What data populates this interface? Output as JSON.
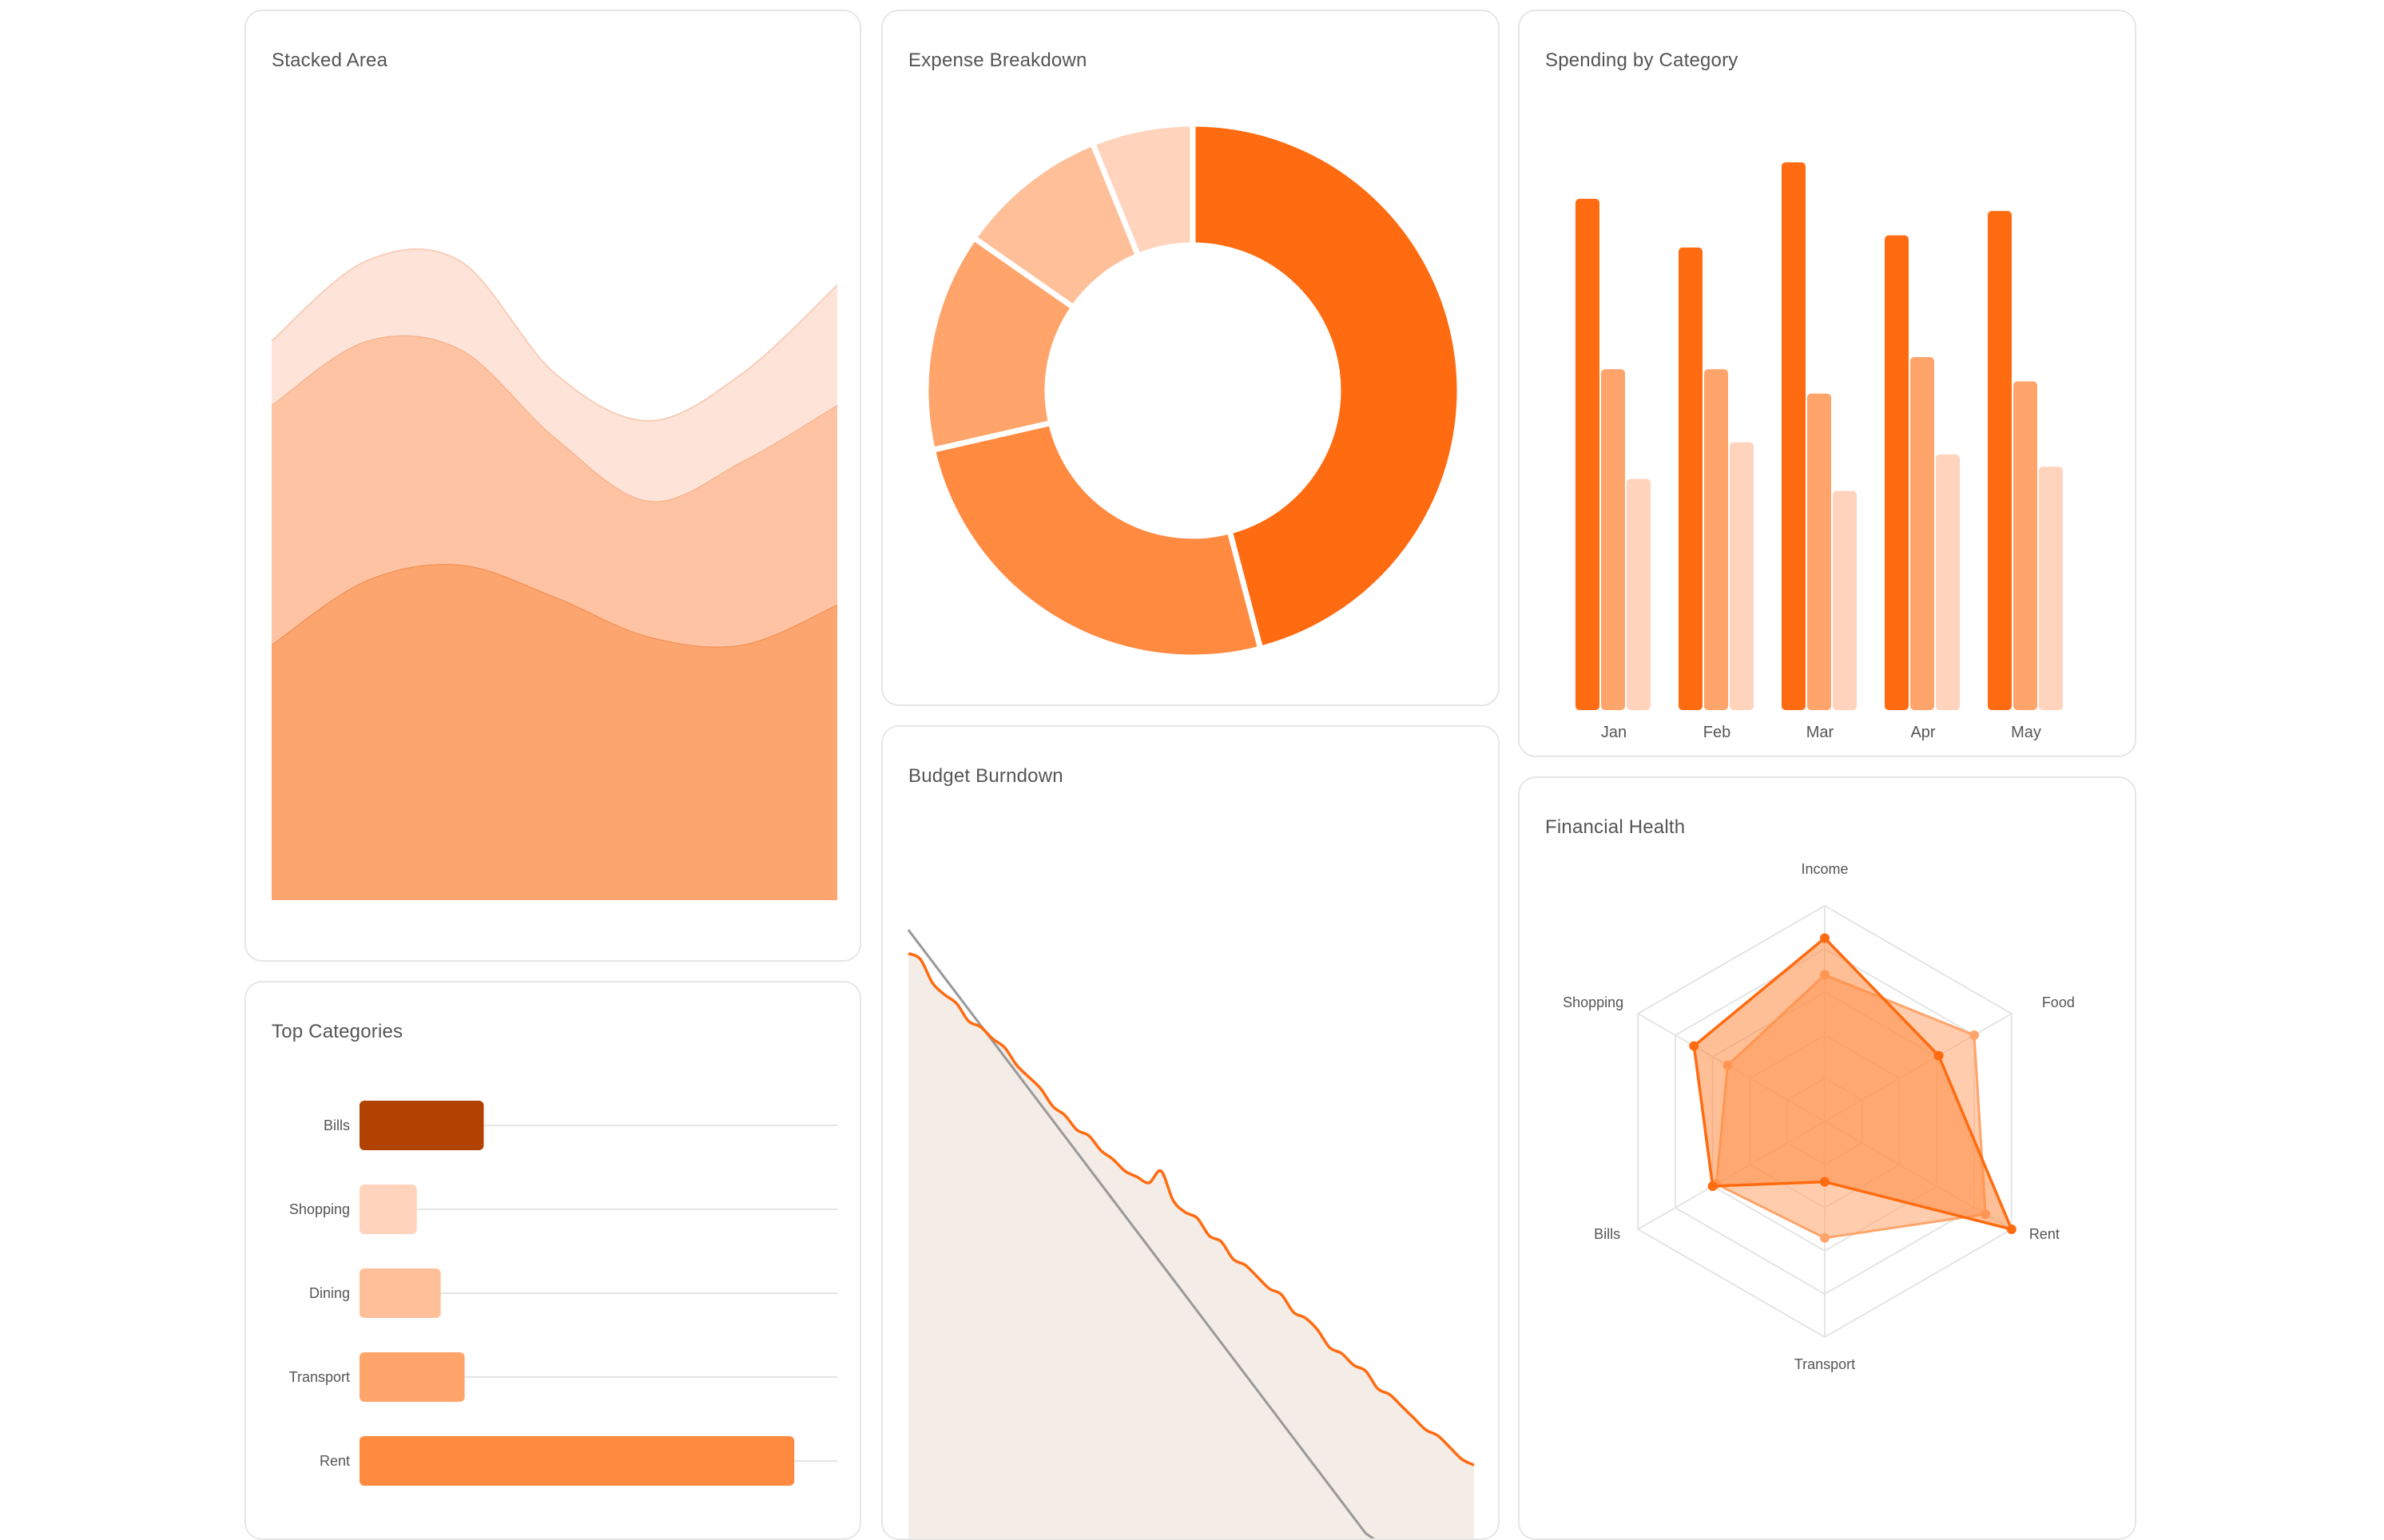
{
  "colors": {
    "c1": "#FF6B10",
    "c2": "#FF8A40",
    "c3": "#FFA46A",
    "c4": "#FFBF98",
    "c5": "#FFD3BC",
    "dark": "#B24201",
    "area_bottom": "#FCA56E",
    "area_mid": "#FDC3A2",
    "area_top": "#FEE4D8",
    "burn_fill": "#F4ECE6",
    "grid": "#E5E5E5",
    "ideal": "#999999"
  },
  "cards": {
    "stacked": {
      "title": "Stacked Area"
    },
    "expense": {
      "title": "Expense Breakdown"
    },
    "spending": {
      "title": "Spending by Category"
    },
    "top": {
      "title": "Top Categories"
    },
    "burndown": {
      "title": "Budget Burndown"
    },
    "health": {
      "title": "Financial Health"
    }
  },
  "chart_data": [
    {
      "id": "stacked",
      "type": "area",
      "title": "Stacked Area",
      "stacked": true,
      "x": [
        0,
        1,
        2,
        3,
        4,
        5,
        6
      ],
      "ylim": [
        0,
        100
      ],
      "series": [
        {
          "values": [
            32,
            40,
            42,
            38,
            33,
            32,
            37
          ]
        },
        {
          "values": [
            30,
            30,
            27,
            20,
            17,
            23,
            25
          ]
        },
        {
          "values": [
            8,
            10,
            11,
            8,
            10,
            11,
            15
          ]
        }
      ]
    },
    {
      "id": "expense",
      "type": "pie",
      "title": "Expense Breakdown",
      "donut": true,
      "values": [
        45,
        25,
        13,
        9,
        6
      ]
    },
    {
      "id": "spending",
      "type": "bar",
      "title": "Spending by Category",
      "categories": [
        "Jan",
        "Feb",
        "Mar",
        "Apr",
        "May"
      ],
      "ylim": [
        0,
        100
      ],
      "series": [
        {
          "values": [
            84,
            76,
            90,
            78,
            82
          ]
        },
        {
          "values": [
            56,
            56,
            52,
            58,
            54
          ]
        },
        {
          "values": [
            38,
            44,
            36,
            42,
            40
          ]
        }
      ]
    },
    {
      "id": "top",
      "type": "bar",
      "orientation": "horizontal",
      "title": "Top Categories",
      "categories": [
        "Bills",
        "Shopping",
        "Dining",
        "Transport",
        "Rent"
      ],
      "values": [
        26,
        12,
        17,
        22,
        91
      ],
      "xlim": [
        0,
        100
      ]
    },
    {
      "id": "burndown",
      "type": "line",
      "title": "Budget Burndown",
      "series": [
        {
          "values": [
            1000,
            990,
            950,
            930,
            915,
            885,
            875,
            855,
            840,
            810,
            790,
            770,
            740,
            725,
            700,
            690,
            665,
            650,
            630,
            620,
            610,
            630,
            580,
            560,
            550,
            520,
            510,
            480,
            470,
            450,
            430,
            420,
            390,
            380,
            360,
            330,
            320,
            300,
            290,
            260,
            250,
            230,
            210,
            190,
            180,
            160,
            140,
            130
          ]
        },
        {
          "values": [
            1040,
            1013,
            986,
            959,
            932,
            905,
            878,
            851,
            824,
            797,
            770,
            743,
            716,
            689,
            662,
            635,
            608,
            581,
            554,
            527,
            500,
            473,
            446,
            419,
            392,
            365,
            338,
            311,
            284,
            257,
            230,
            203,
            176,
            149,
            122,
            95,
            68,
            41,
            14,
            0,
            0,
            0,
            0,
            0,
            0,
            0,
            0,
            0
          ]
        }
      ],
      "ylim": [
        0,
        1100
      ]
    },
    {
      "id": "health",
      "type": "radar",
      "title": "Financial Health",
      "axes": [
        "Income",
        "Food",
        "Rent",
        "Transport",
        "Bills",
        "Shopping"
      ],
      "max": 100,
      "series": [
        {
          "values": [
            85,
            61,
            100,
            28,
            60,
            70
          ]
        },
        {
          "values": [
            68,
            80,
            86,
            54,
            58,
            52
          ]
        }
      ]
    }
  ]
}
